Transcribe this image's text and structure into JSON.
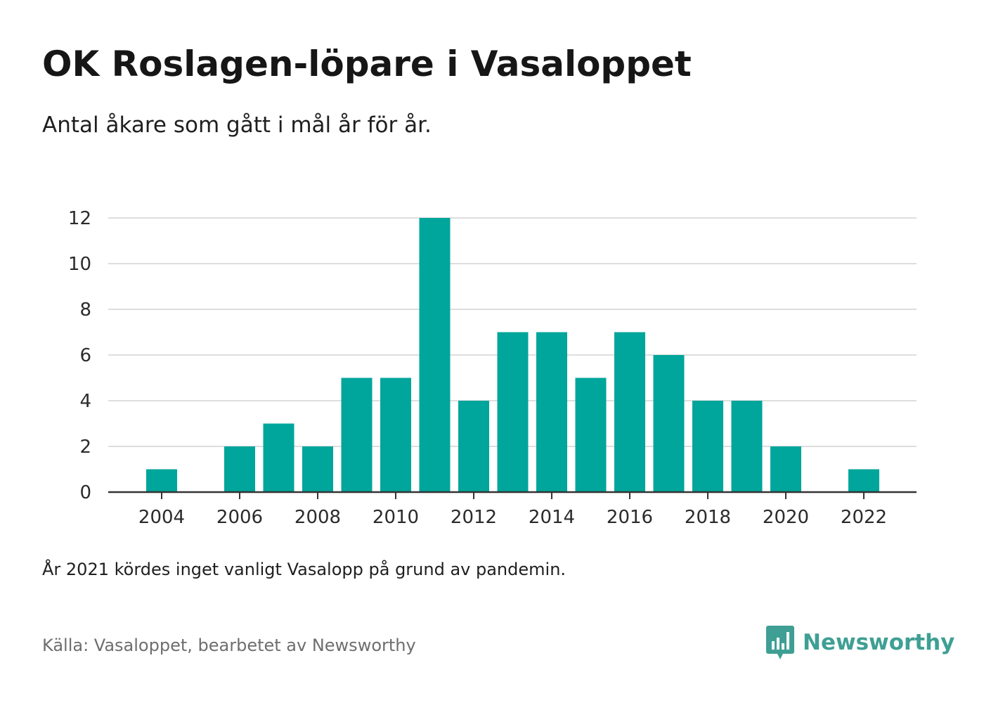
{
  "header": {
    "title": "OK Roslagen-löpare i Vasaloppet",
    "subtitle": "Antal åkare som gått i mål år för år."
  },
  "footer": {
    "note": "År 2021 kördes inget vanligt Vasalopp på grund av pandemin.",
    "source": "Källa: Vasaloppet, bearbetet av Newsworthy",
    "brand": "Newsworthy",
    "brand_icon": "bar-chart-speech-bubble-icon"
  },
  "colors": {
    "bar": "#00a59b",
    "grid": "#dedede",
    "axis": "#333333",
    "brand": "#3f9f94"
  },
  "chart_data": {
    "type": "bar",
    "title": "OK Roslagen-löpare i Vasaloppet",
    "subtitle": "Antal åkare som gått i mål år för år.",
    "xlabel": "",
    "ylabel": "",
    "x": [
      2004,
      2005,
      2006,
      2007,
      2008,
      2009,
      2010,
      2011,
      2012,
      2013,
      2014,
      2015,
      2016,
      2017,
      2018,
      2019,
      2020,
      2021,
      2022
    ],
    "values": [
      1,
      0,
      2,
      3,
      2,
      5,
      5,
      12,
      4,
      7,
      7,
      5,
      7,
      6,
      4,
      4,
      2,
      0,
      1
    ],
    "xticks": [
      2004,
      2006,
      2008,
      2010,
      2012,
      2014,
      2016,
      2018,
      2020,
      2022
    ],
    "yticks": [
      0,
      2,
      4,
      6,
      8,
      10,
      12
    ],
    "ylim": [
      0,
      12
    ],
    "grid": "horizontal",
    "legend": "none"
  }
}
